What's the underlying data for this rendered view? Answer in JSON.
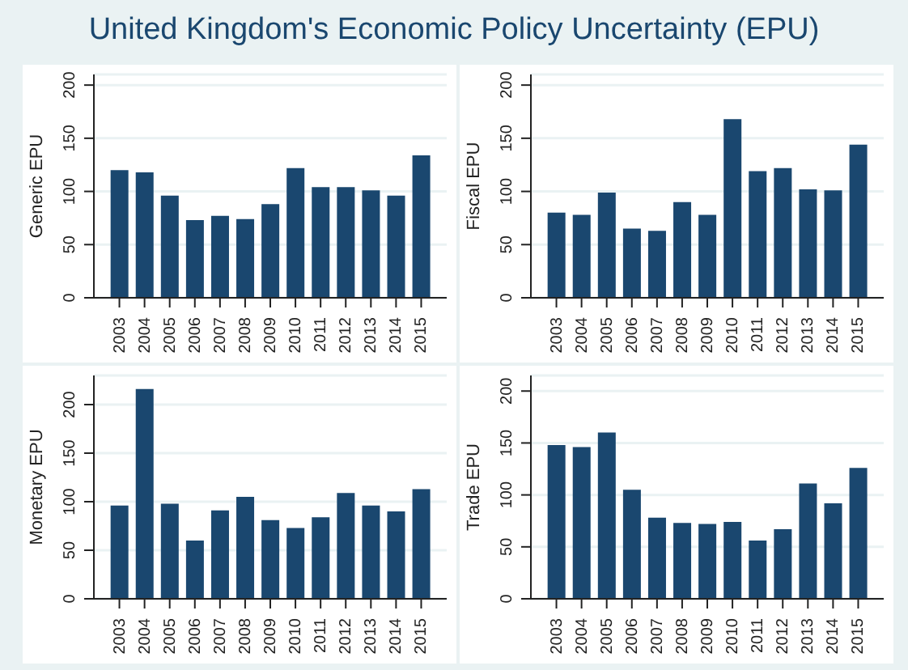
{
  "chart_data": [
    {
      "type": "bar",
      "title": "United Kingdom's Economic Policy Uncertainty (EPU)",
      "ylabel": "Generic EPU",
      "categories": [
        "2003",
        "2004",
        "2005",
        "2006",
        "2007",
        "2008",
        "2009",
        "2010",
        "2011",
        "2012",
        "2013",
        "2014",
        "2015"
      ],
      "values": [
        120,
        118,
        96,
        73,
        77,
        74,
        88,
        122,
        104,
        104,
        101,
        96,
        134
      ],
      "color": "#1a476f",
      "ylim": [
        0,
        210
      ],
      "yticks": [
        0,
        50,
        100,
        150,
        200
      ],
      "grid": "y"
    },
    {
      "type": "bar",
      "ylabel": "Fiscal EPU",
      "categories": [
        "2003",
        "2004",
        "2005",
        "2006",
        "2007",
        "2008",
        "2009",
        "2010",
        "2011",
        "2012",
        "2013",
        "2014",
        "2015"
      ],
      "values": [
        80,
        78,
        99,
        65,
        63,
        90,
        78,
        168,
        119,
        122,
        102,
        101,
        144
      ],
      "color": "#1a476f",
      "ylim": [
        0,
        210
      ],
      "yticks": [
        0,
        50,
        100,
        150,
        200
      ],
      "grid": "y"
    },
    {
      "type": "bar",
      "ylabel": "Monetary EPU",
      "categories": [
        "2003",
        "2004",
        "2005",
        "2006",
        "2007",
        "2008",
        "2009",
        "2010",
        "2011",
        "2012",
        "2013",
        "2014",
        "2015"
      ],
      "values": [
        96,
        216,
        98,
        60,
        91,
        105,
        81,
        73,
        84,
        109,
        96,
        90,
        113
      ],
      "color": "#1a476f",
      "ylim": [
        0,
        230
      ],
      "yticks": [
        0,
        50,
        100,
        150,
        200
      ],
      "grid": "y"
    },
    {
      "type": "bar",
      "ylabel": "Trade EPU",
      "categories": [
        "2003",
        "2004",
        "2005",
        "2006",
        "2007",
        "2008",
        "2009",
        "2010",
        "2011",
        "2012",
        "2013",
        "2014",
        "2015"
      ],
      "values": [
        148,
        146,
        160,
        105,
        78,
        73,
        72,
        74,
        56,
        67,
        111,
        92,
        126
      ],
      "color": "#1a476f",
      "ylim": [
        0,
        215
      ],
      "yticks": [
        0,
        50,
        100,
        150,
        200
      ],
      "grid": "y"
    }
  ]
}
